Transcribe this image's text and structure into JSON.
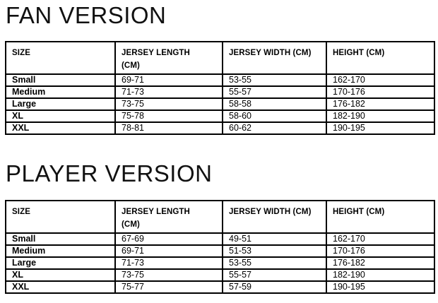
{
  "fan": {
    "title": "FAN VERSION",
    "headers": {
      "size": "SIZE",
      "length_line1": "JERSEY LENGTH",
      "length_line2": "(CM)",
      "width": "JERSEY WIDTH (CM)",
      "height": "HEIGHT (CM)"
    },
    "rows": [
      {
        "size": "Small",
        "length": "69-71",
        "width": "53-55",
        "height": "162-170"
      },
      {
        "size": "Medium",
        "length": "71-73",
        "width": "55-57",
        "height": "170-176"
      },
      {
        "size": "Large",
        "length": "73-75",
        "width": "58-58",
        "height": "176-182"
      },
      {
        "size": "XL",
        "length": "75-78",
        "width": "58-60",
        "height": "182-190"
      },
      {
        "size": "XXL",
        "length": "78-81",
        "width": "60-62",
        "height": "190-195"
      }
    ]
  },
  "player": {
    "title": "PLAYER VERSION",
    "headers": {
      "size": "SIZE",
      "length_line1": "JERSEY LENGTH",
      "length_line2": "(CM)",
      "width": "JERSEY WIDTH (CM)",
      "height": "HEIGHT (CM)"
    },
    "rows": [
      {
        "size": "Small",
        "length": "67-69",
        "width": "49-51",
        "height": "162-170"
      },
      {
        "size": "Medium",
        "length": "69-71",
        "width": "51-53",
        "height": "170-176"
      },
      {
        "size": "Large",
        "length": "71-73",
        "width": "53-55",
        "height": "176-182"
      },
      {
        "size": "XL",
        "length": "73-75",
        "width": "55-57",
        "height": "182-190"
      },
      {
        "size": "XXL",
        "length": "75-77",
        "width": "57-59",
        "height": "190-195"
      }
    ]
  },
  "colors": {
    "background": "#ffffff",
    "text": "#000000",
    "border": "#000000"
  }
}
